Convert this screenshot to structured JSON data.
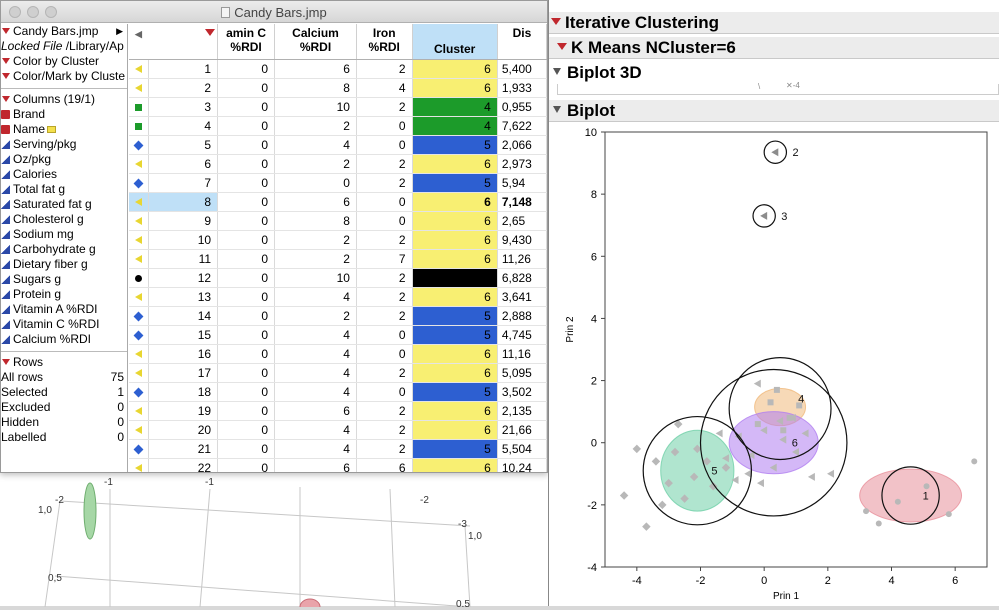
{
  "window": {
    "title": "Candy Bars.jmp"
  },
  "left_panel": {
    "table_name": "Candy Bars.jmp",
    "locked_file_label": "Locked File",
    "locked_file_path": "/Library/Ap",
    "scripts": [
      "Color by Cluster",
      "Color/Mark by Cluste"
    ],
    "columns_header": "Columns (19/1)",
    "columns": [
      {
        "name": "Brand",
        "type": "nominal"
      },
      {
        "name": "Name",
        "type": "nominal"
      },
      {
        "name": "Serving/pkg",
        "type": "continuous"
      },
      {
        "name": "Oz/pkg",
        "type": "continuous"
      },
      {
        "name": "Calories",
        "type": "continuous"
      },
      {
        "name": "Total fat g",
        "type": "continuous"
      },
      {
        "name": "Saturated fat g",
        "type": "continuous"
      },
      {
        "name": "Cholesterol g",
        "type": "continuous"
      },
      {
        "name": "Sodium mg",
        "type": "continuous"
      },
      {
        "name": "Carbohydrate g",
        "type": "continuous"
      },
      {
        "name": "Dietary fiber g",
        "type": "continuous"
      },
      {
        "name": "Sugars g",
        "type": "continuous"
      },
      {
        "name": "Protein g",
        "type": "continuous"
      },
      {
        "name": "Vitamin A %RDI",
        "type": "continuous"
      },
      {
        "name": "Vitamin C %RDI",
        "type": "continuous"
      },
      {
        "name": "Calcium %RDI",
        "type": "continuous"
      }
    ],
    "rows_header": "Rows",
    "row_stats": [
      {
        "label": "All rows",
        "value": "75"
      },
      {
        "label": "Selected",
        "value": "1"
      },
      {
        "label": "Excluded",
        "value": "0"
      },
      {
        "label": "Hidden",
        "value": "0"
      },
      {
        "label": "Labelled",
        "value": "0"
      }
    ]
  },
  "grid": {
    "headers": [
      "amin C\n%RDI",
      "Calcium\n%RDI",
      "Iron\n%RDI",
      "Cluster",
      "Dis"
    ],
    "rows": [
      {
        "n": "1",
        "marker": "tri",
        "vc": "0",
        "ca": "6",
        "fe": "2",
        "cl": "6",
        "dis": "5,400"
      },
      {
        "n": "2",
        "marker": "tri",
        "vc": "0",
        "ca": "8",
        "fe": "4",
        "cl": "6",
        "dis": "1,933"
      },
      {
        "n": "3",
        "marker": "sq",
        "vc": "0",
        "ca": "10",
        "fe": "2",
        "cl": "4",
        "dis": "0,955"
      },
      {
        "n": "4",
        "marker": "sq",
        "vc": "0",
        "ca": "2",
        "fe": "0",
        "cl": "4",
        "dis": "7,622"
      },
      {
        "n": "5",
        "marker": "dia",
        "vc": "0",
        "ca": "4",
        "fe": "0",
        "cl": "5",
        "dis": "2,066"
      },
      {
        "n": "6",
        "marker": "tri",
        "vc": "0",
        "ca": "2",
        "fe": "2",
        "cl": "6",
        "dis": "2,973"
      },
      {
        "n": "7",
        "marker": "dia",
        "vc": "0",
        "ca": "0",
        "fe": "2",
        "cl": "5",
        "dis": "5,94"
      },
      {
        "n": "8",
        "marker": "tri",
        "vc": "0",
        "ca": "6",
        "fe": "0",
        "cl": "6",
        "dis": "7,148",
        "selected": true
      },
      {
        "n": "9",
        "marker": "tri",
        "vc": "0",
        "ca": "8",
        "fe": "0",
        "cl": "6",
        "dis": "2,65"
      },
      {
        "n": "10",
        "marker": "tri",
        "vc": "0",
        "ca": "2",
        "fe": "2",
        "cl": "6",
        "dis": "9,430"
      },
      {
        "n": "11",
        "marker": "tri",
        "vc": "0",
        "ca": "2",
        "fe": "7",
        "cl": "6",
        "dis": "11,26"
      },
      {
        "n": "12",
        "marker": "dot",
        "vc": "0",
        "ca": "10",
        "fe": "2",
        "cl": "",
        "dis": "6,828"
      },
      {
        "n": "13",
        "marker": "tri",
        "vc": "0",
        "ca": "4",
        "fe": "2",
        "cl": "6",
        "dis": "3,641"
      },
      {
        "n": "14",
        "marker": "dia",
        "vc": "0",
        "ca": "2",
        "fe": "2",
        "cl": "5",
        "dis": "2,888"
      },
      {
        "n": "15",
        "marker": "dia",
        "vc": "0",
        "ca": "4",
        "fe": "0",
        "cl": "5",
        "dis": "4,745"
      },
      {
        "n": "16",
        "marker": "tri",
        "vc": "0",
        "ca": "4",
        "fe": "0",
        "cl": "6",
        "dis": "11,16"
      },
      {
        "n": "17",
        "marker": "tri",
        "vc": "0",
        "ca": "4",
        "fe": "2",
        "cl": "6",
        "dis": "5,095"
      },
      {
        "n": "18",
        "marker": "dia",
        "vc": "0",
        "ca": "4",
        "fe": "0",
        "cl": "5",
        "dis": "3,502"
      },
      {
        "n": "19",
        "marker": "tri",
        "vc": "0",
        "ca": "6",
        "fe": "2",
        "cl": "6",
        "dis": "2,135"
      },
      {
        "n": "20",
        "marker": "tri",
        "vc": "0",
        "ca": "4",
        "fe": "2",
        "cl": "6",
        "dis": "21,66"
      },
      {
        "n": "21",
        "marker": "dia",
        "vc": "0",
        "ca": "4",
        "fe": "2",
        "cl": "5",
        "dis": "5,504"
      },
      {
        "n": "22",
        "marker": "tri",
        "vc": "0",
        "ca": "6",
        "fe": "6",
        "cl": "6",
        "dis": "10,24"
      }
    ],
    "cluster_colors": {
      "4": "#1c9b2a",
      "5": "#2d5fd1",
      "6": "#f8ef72",
      "": "#000000"
    }
  },
  "report": {
    "title": "Iterative Clustering",
    "subtitle": "K Means NCluster=6",
    "biplot3d": "Biplot 3D",
    "biplot": "Biplot"
  },
  "chart_data": {
    "type": "scatter",
    "xlabel": "Prin 1",
    "ylabel": "Prin 2",
    "xlim": [
      -5,
      7
    ],
    "ylim": [
      -4,
      10
    ],
    "xticks": [
      -4,
      -2,
      0,
      2,
      4,
      6
    ],
    "yticks": [
      -4,
      -2,
      0,
      2,
      4,
      6,
      8,
      10
    ],
    "clusters": [
      {
        "id": "1",
        "center": [
          4.6,
          -1.7
        ],
        "color": "#e88f9a",
        "marker": "dot",
        "points": [
          [
            5.1,
            -1.4
          ],
          [
            4.2,
            -1.9
          ],
          [
            5.8,
            -2.3
          ],
          [
            3.2,
            -2.2
          ],
          [
            6.6,
            -0.6
          ],
          [
            3.6,
            -2.6
          ]
        ]
      },
      {
        "id": "2",
        "center": [
          0.35,
          9.35
        ],
        "color": "#909090",
        "marker": "tri",
        "points": [
          [
            0.35,
            9.35
          ]
        ]
      },
      {
        "id": "3",
        "center": [
          0.0,
          7.3
        ],
        "color": "#909090",
        "marker": "tri",
        "points": [
          [
            0.0,
            7.3
          ]
        ]
      },
      {
        "id": "4",
        "center": [
          0.5,
          1.1
        ],
        "color": "#f0c89a",
        "marker": "sq",
        "points": [
          [
            0.2,
            1.3
          ],
          [
            0.8,
            0.8
          ],
          [
            0.4,
            1.7
          ],
          [
            1.1,
            1.2
          ],
          [
            -0.2,
            0.6
          ],
          [
            0.6,
            0.4
          ]
        ]
      },
      {
        "id": "5",
        "center": [
          -2.1,
          -0.9
        ],
        "color": "#7fd1b2",
        "marker": "dia",
        "points": [
          [
            -3.4,
            -0.6
          ],
          [
            -2.8,
            -0.3
          ],
          [
            -2.2,
            -1.1
          ],
          [
            -1.8,
            -0.6
          ],
          [
            -2.5,
            -1.8
          ],
          [
            -3.0,
            -1.3
          ],
          [
            -1.6,
            -1.4
          ],
          [
            -3.2,
            -2.0
          ],
          [
            -4.0,
            -0.2
          ],
          [
            -2.1,
            -0.2
          ],
          [
            -4.4,
            -1.7
          ],
          [
            -3.7,
            -2.7
          ],
          [
            -2.7,
            0.6
          ],
          [
            -1.2,
            -0.8
          ]
        ]
      },
      {
        "id": "6",
        "center": [
          0.3,
          0.0
        ],
        "color": "#bf8ef0",
        "marker": "tri",
        "points": [
          [
            0.0,
            0.4
          ],
          [
            0.6,
            0.1
          ],
          [
            -0.4,
            -0.4
          ],
          [
            1.0,
            -0.3
          ],
          [
            0.3,
            -0.8
          ],
          [
            -0.8,
            0.2
          ],
          [
            1.3,
            0.3
          ],
          [
            0.5,
            0.7
          ],
          [
            -0.5,
            -1.0
          ],
          [
            -0.1,
            -1.3
          ],
          [
            1.5,
            -1.1
          ],
          [
            -1.2,
            -0.5
          ],
          [
            0.9,
            0.8
          ],
          [
            -0.9,
            -1.2
          ],
          [
            -1.4,
            0.3
          ],
          [
            2.1,
            -1.0
          ],
          [
            -0.2,
            1.9
          ]
        ]
      }
    ],
    "circles": [
      {
        "id": "1",
        "cx": 4.6,
        "cy": -1.7,
        "r": 0.9
      },
      {
        "id": "2",
        "cx": 0.35,
        "cy": 9.35,
        "r": 0.35
      },
      {
        "id": "3",
        "cx": 0.0,
        "cy": 7.3,
        "r": 0.35
      },
      {
        "id": "4",
        "cx": 0.5,
        "cy": 1.1,
        "r": 1.6
      },
      {
        "id": "5",
        "cx": -2.1,
        "cy": -0.9,
        "r": 1.7
      },
      {
        "id": "6",
        "cx": 0.3,
        "cy": 0.0,
        "r": 2.3
      }
    ],
    "ellipses": [
      {
        "id": "1",
        "cx": 4.6,
        "cy": -1.7,
        "rx": 1.6,
        "ry": 0.85,
        "color": "#e88f9a"
      },
      {
        "id": "4",
        "cx": 0.5,
        "cy": 1.15,
        "rx": 0.8,
        "ry": 0.6,
        "color": "#f0b97c"
      },
      {
        "id": "5",
        "cx": -2.1,
        "cy": -0.9,
        "rx": 1.15,
        "ry": 1.3,
        "color": "#6fcfa8"
      },
      {
        "id": "6",
        "cx": 0.3,
        "cy": 0.0,
        "rx": 1.4,
        "ry": 1.0,
        "color": "#b07ef0"
      }
    ]
  },
  "bg3d": {
    "labels": [
      "-2",
      "-1",
      "1,0",
      "0,5",
      "-1",
      "-2",
      "-3",
      "1,0",
      "0,5"
    ]
  }
}
